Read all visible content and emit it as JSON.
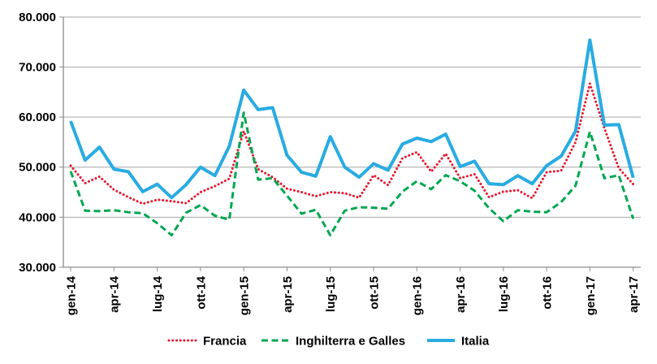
{
  "chart_data": {
    "type": "line",
    "title": "",
    "xlabel": "",
    "ylabel": "",
    "grid": true,
    "legend_position": "bottom",
    "ylim": [
      30000,
      80000
    ],
    "y_ticks": [
      {
        "value": 80000,
        "label": "80.000"
      },
      {
        "value": 70000,
        "label": "70.000"
      },
      {
        "value": 60000,
        "label": "60.000"
      },
      {
        "value": 50000,
        "label": "50.000"
      },
      {
        "value": 40000,
        "label": "40.000"
      },
      {
        "value": 30000,
        "label": "30.000"
      }
    ],
    "x_tick_interval": 3,
    "x_tick_labels": [
      "gen-14",
      "apr-14",
      "lug-14",
      "ott-14",
      "gen-15",
      "apr-15",
      "lug-15",
      "ott-15",
      "gen-16",
      "apr-16",
      "lug-16",
      "ott-16",
      "gen-17",
      "apr-17"
    ],
    "categories": [
      "gen-14",
      "feb-14",
      "mar-14",
      "apr-14",
      "mag-14",
      "giu-14",
      "lug-14",
      "ago-14",
      "set-14",
      "ott-14",
      "nov-14",
      "dic-14",
      "gen-15",
      "feb-15",
      "mar-15",
      "apr-15",
      "mag-15",
      "giu-15",
      "lug-15",
      "ago-15",
      "set-15",
      "ott-15",
      "nov-15",
      "dic-15",
      "gen-16",
      "feb-16",
      "mar-16",
      "apr-16",
      "mag-16",
      "giu-16",
      "lug-16",
      "ago-16",
      "set-16",
      "ott-16",
      "nov-16",
      "dic-16",
      "gen-17",
      "feb-17",
      "mar-17",
      "apr-17"
    ],
    "series": [
      {
        "name": "Francia",
        "color": "#E41B32",
        "line_style": "dotted",
        "values": [
          50300,
          46800,
          48100,
          45500,
          44000,
          42700,
          43500,
          43200,
          42800,
          45000,
          46200,
          47700,
          57200,
          49600,
          48000,
          45700,
          45000,
          44200,
          45000,
          44800,
          43900,
          48400,
          46400,
          51800,
          53000,
          49100,
          52700,
          47800,
          48600,
          44000,
          45100,
          45400,
          43800,
          49000,
          49300,
          55000,
          66700,
          57800,
          49800,
          46600
        ]
      },
      {
        "name": "Inghilterra e Galles",
        "color": "#00A651",
        "line_style": "dashed",
        "values": [
          49200,
          41300,
          41200,
          41400,
          41000,
          40800,
          38800,
          36400,
          40900,
          42400,
          40300,
          39500,
          60900,
          47500,
          47800,
          44300,
          40700,
          41500,
          36400,
          41300,
          42000,
          41900,
          41700,
          45100,
          47200,
          45600,
          48400,
          47200,
          45300,
          41800,
          39200,
          41400,
          41100,
          41000,
          43000,
          46300,
          57100,
          47800,
          48400,
          39700
        ]
      },
      {
        "name": "Italia",
        "color": "#29ABE2",
        "line_style": "solid",
        "values": [
          59200,
          51400,
          54000,
          49600,
          49100,
          45100,
          46600,
          43900,
          46500,
          50000,
          48300,
          54200,
          65400,
          61500,
          61900,
          52400,
          49000,
          48200,
          56100,
          50000,
          48000,
          50700,
          49400,
          54600,
          55800,
          55100,
          56600,
          50100,
          51200,
          46700,
          46500,
          48300,
          46700,
          50300,
          52200,
          57200,
          75400,
          58400,
          58500,
          47900
        ]
      }
    ],
    "axis_color": "#8C8C8C",
    "grid_color": "#A6A6A6",
    "background": "#FFFFFF"
  }
}
